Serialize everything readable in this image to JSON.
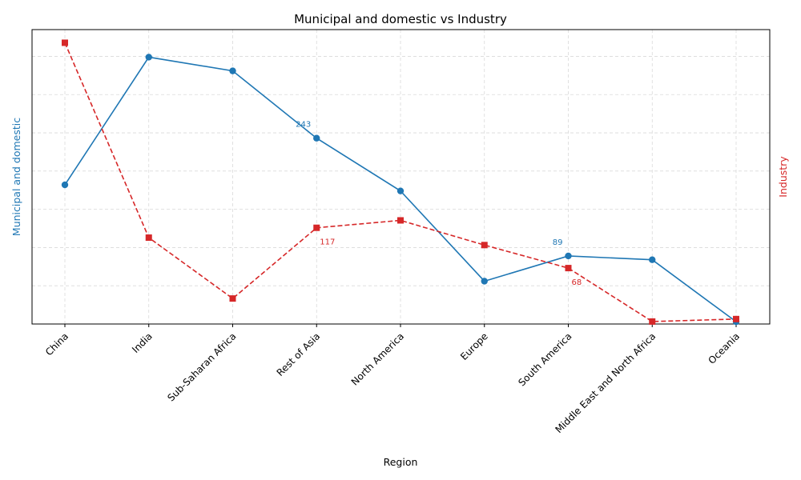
{
  "chart_data": {
    "type": "line",
    "title": "Municipal and domestic vs Industry",
    "xlabel": "Region",
    "categories": [
      "China",
      "India",
      "Sub-Saharan Africa",
      "Rest of Asia",
      "North America",
      "Europe",
      "South America",
      "Middle East and North Africa",
      "Oceania"
    ],
    "left_axis": {
      "label": "Municipal and domestic",
      "color": "#1f77b4",
      "ylim": [
        0,
        385
      ]
    },
    "right_axis": {
      "label": "Industry",
      "color": "#d62728",
      "ylim": [
        0,
        358
      ]
    },
    "series": [
      {
        "name": "Municipal and domestic",
        "axis": "left",
        "color": "#1f77b4",
        "style": "solid",
        "marker": "circle",
        "values": [
          182,
          349,
          331,
          243,
          174,
          56,
          89,
          84,
          3
        ]
      },
      {
        "name": "Industry",
        "axis": "right",
        "color": "#d62728",
        "style": "dashed",
        "marker": "square",
        "values": [
          342,
          105,
          31,
          117,
          126,
          96,
          68,
          3,
          6
        ]
      }
    ],
    "annotations": [
      {
        "series": 0,
        "index": 3,
        "text": "243"
      },
      {
        "series": 1,
        "index": 3,
        "text": "117"
      },
      {
        "series": 0,
        "index": 6,
        "text": "89"
      },
      {
        "series": 1,
        "index": 6,
        "text": "68"
      }
    ],
    "grid": true
  }
}
